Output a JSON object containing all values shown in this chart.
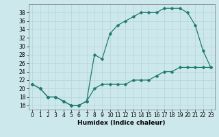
{
  "title": "",
  "xlabel": "Humidex (Indice chaleur)",
  "xlim": [
    -0.5,
    23.5
  ],
  "ylim": [
    15,
    40
  ],
  "xticks": [
    0,
    1,
    2,
    3,
    4,
    5,
    6,
    7,
    8,
    9,
    10,
    11,
    12,
    13,
    14,
    15,
    16,
    17,
    18,
    19,
    20,
    21,
    22,
    23
  ],
  "yticks": [
    16,
    18,
    20,
    22,
    24,
    26,
    28,
    30,
    32,
    34,
    36,
    38
  ],
  "bg_color": "#cde8ec",
  "grid_color": "#b8d8dc",
  "line_color": "#1e7a6e",
  "upper_x": [
    0,
    1,
    2,
    3,
    4,
    5,
    6,
    7,
    8,
    9,
    10,
    11,
    12,
    13,
    14,
    15,
    16,
    17,
    18,
    19,
    20,
    21,
    22,
    23
  ],
  "upper_y": [
    21,
    20,
    18,
    18,
    17,
    16,
    16,
    17,
    28,
    27,
    33,
    35,
    36,
    37,
    38,
    38,
    38,
    39,
    39,
    39,
    38,
    35,
    29,
    25
  ],
  "lower_x": [
    0,
    1,
    2,
    3,
    4,
    5,
    6,
    7,
    8,
    9,
    10,
    11,
    12,
    13,
    14,
    15,
    16,
    17,
    18,
    19,
    20,
    21,
    22,
    23
  ],
  "lower_y": [
    21,
    20,
    18,
    18,
    17,
    16,
    16,
    17,
    20,
    21,
    21,
    21,
    21,
    22,
    22,
    22,
    23,
    24,
    24,
    25,
    25,
    25,
    25,
    25
  ],
  "marker_size": 2.5,
  "lw": 0.9,
  "tick_fontsize": 5.5,
  "xlabel_fontsize": 6.5
}
